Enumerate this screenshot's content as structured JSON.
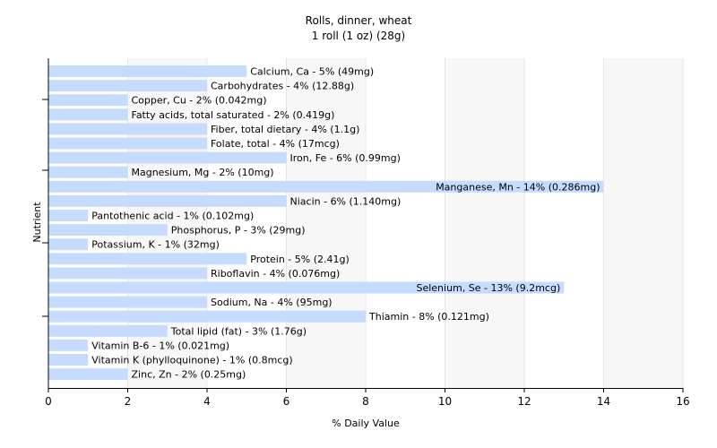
{
  "chart_data": {
    "type": "bar",
    "orientation": "horizontal",
    "title": "Rolls, dinner, wheat",
    "subtitle": "1 roll (1 oz) (28g)",
    "xlabel": "% Daily Value",
    "ylabel": "Nutrient",
    "xlim": [
      0,
      16
    ],
    "xticks": [
      0,
      2,
      4,
      6,
      8,
      10,
      12,
      14,
      16
    ],
    "grid": true,
    "bar_color": "#c6dcff",
    "categories": [
      "Calcium, Ca",
      "Carbohydrates",
      "Copper, Cu",
      "Fatty acids, total saturated",
      "Fiber, total dietary",
      "Folate, total",
      "Iron, Fe",
      "Magnesium, Mg",
      "Manganese, Mn",
      "Niacin",
      "Pantothenic acid",
      "Phosphorus, P",
      "Potassium, K",
      "Protein",
      "Riboflavin",
      "Selenium, Se",
      "Sodium, Na",
      "Thiamin",
      "Total lipid (fat)",
      "Vitamin B-6",
      "Vitamin K (phylloquinone)",
      "Zinc, Zn"
    ],
    "values": [
      5,
      4,
      2,
      2,
      4,
      4,
      6,
      2,
      14,
      6,
      1,
      3,
      1,
      5,
      4,
      13,
      4,
      8,
      3,
      1,
      1,
      2
    ],
    "labels": [
      "Calcium, Ca - 5% (49mg)",
      "Carbohydrates - 4% (12.88g)",
      "Copper, Cu - 2% (0.042mg)",
      "Fatty acids, total saturated - 2% (0.419g)",
      "Fiber, total dietary - 4% (1.1g)",
      "Folate, total - 4% (17mcg)",
      "Iron, Fe - 6% (0.99mg)",
      "Magnesium, Mg - 2% (10mg)",
      "Manganese, Mn - 14% (0.286mg)",
      "Niacin - 6% (1.140mg)",
      "Pantothenic acid - 1% (0.102mg)",
      "Phosphorus, P - 3% (29mg)",
      "Potassium, K - 1% (32mg)",
      "Protein - 5% (2.41g)",
      "Riboflavin - 4% (0.076mg)",
      "Selenium, Se - 13% (9.2mcg)",
      "Sodium, Na - 4% (95mg)",
      "Thiamin - 8% (0.121mg)",
      "Total lipid (fat) - 3% (1.76g)",
      "Vitamin B-6 - 1% (0.021mg)",
      "Vitamin K (phylloquinone) - 1% (0.8mcg)",
      "Zinc, Zn - 2% (0.25mg)"
    ]
  }
}
